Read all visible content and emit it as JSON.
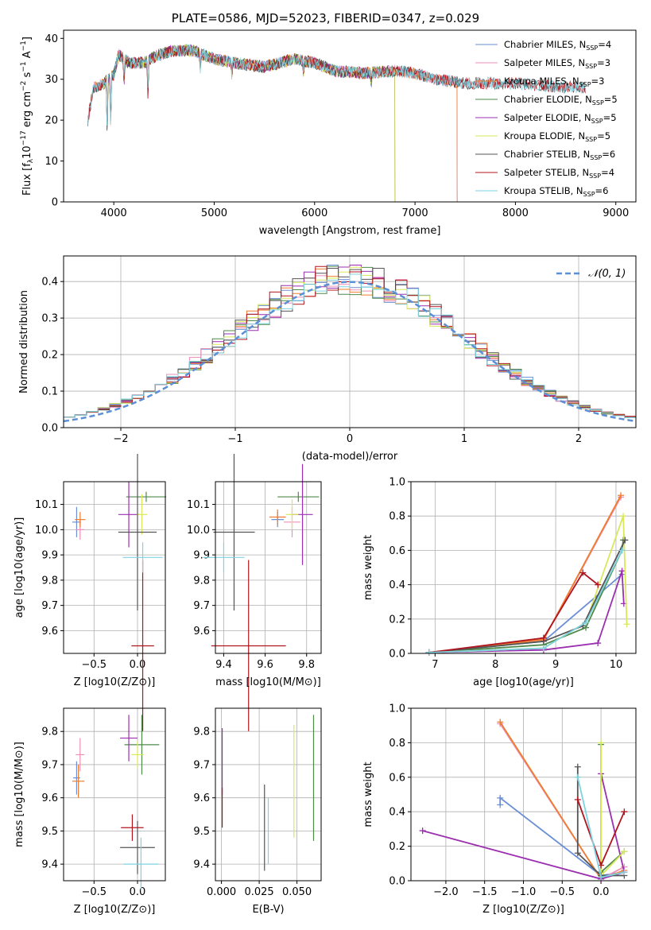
{
  "figure_title": "PLATE=0586, MJD=52023, FIBERID=0347, z=0.029",
  "colors": {
    "Chabrier MILES": "#6a8fd6",
    "Salpeter MILES": "#ee8fb8",
    "Kroupa MILES": "#ef7d2e",
    "Chabrier ELODIE": "#4f8a4a",
    "Salpeter ELODIE": "#9b2fb0",
    "Kroupa ELODIE": "#d8e85a",
    "Chabrier STELIB": "#555555",
    "Salpeter STELIB": "#b0141e",
    "Kroupa STELIB": "#7fd3e0",
    "normal": "#5b8fd6"
  },
  "chart_data": [
    {
      "type": "line",
      "title": "PLATE=0586, MJD=52023, FIBERID=0347, z=0.029",
      "xlabel": "wavelength [Angstrom, rest frame]",
      "ylabel": "Flux [f_λ 10^-17 erg cm^-2 s^-1 A^-1]",
      "xlim": [
        3500,
        9200
      ],
      "ylim": [
        0,
        42
      ],
      "xticks": [
        4000,
        5000,
        6000,
        7000,
        8000,
        9000
      ],
      "yticks": [
        0,
        10,
        20,
        30,
        40
      ],
      "legend_position": "top-right",
      "grid": false,
      "series": [
        {
          "name": "Chabrier MILES, N_SSP=4",
          "range": [
            3740,
            7420
          ]
        },
        {
          "name": "Salpeter MILES, N_SSP=3",
          "range": [
            3740,
            7420
          ]
        },
        {
          "name": "Kroupa MILES, N_SSP=3",
          "range": [
            3740,
            7420
          ]
        },
        {
          "name": "Chabrier ELODIE, N_SSP=5",
          "range": [
            3900,
            6800
          ]
        },
        {
          "name": "Salpeter ELODIE, N_SSP=5",
          "range": [
            3900,
            6800
          ]
        },
        {
          "name": "Kroupa ELODIE, N_SSP=5",
          "range": [
            3900,
            6800
          ]
        },
        {
          "name": "Chabrier STELIB, N_SSP=6",
          "range": [
            3740,
            8700
          ]
        },
        {
          "name": "Salpeter STELIB, N_SSP=4",
          "range": [
            3740,
            8700
          ]
        },
        {
          "name": "Kroupa STELIB, N_SSP=6",
          "range": [
            3740,
            8700
          ]
        }
      ],
      "continuum": {
        "x": [
          3740,
          3800,
          3900,
          4000,
          4050,
          4150,
          4300,
          4450,
          4600,
          4800,
          5000,
          5200,
          5500,
          5800,
          6000,
          6200,
          6500,
          6800,
          7000,
          7200,
          7500,
          8000,
          8500,
          8700
        ],
        "y": [
          20,
          28,
          29,
          31,
          36,
          34,
          34,
          36,
          37,
          37,
          35,
          34,
          33,
          35,
          34,
          32,
          31.5,
          32,
          31.5,
          30,
          29,
          29,
          28,
          28
        ]
      }
    },
    {
      "type": "bar",
      "xlabel": "(data-model)/error",
      "ylabel": "Normed distribution",
      "xlim": [
        -2.5,
        2.5
      ],
      "ylim": [
        0,
        0.47
      ],
      "xticks": [
        -2,
        -1,
        0,
        1,
        2
      ],
      "yticks": [
        0.0,
        0.1,
        0.2,
        0.3,
        0.4
      ],
      "grid": true,
      "legend": "𝒩(0, 1)",
      "legend_position": "top-right",
      "bin_start": -2.5,
      "bin_width": 0.1
    },
    {
      "type": "scatter",
      "xlabel": "Z [log10(Z/Z⊙)]",
      "ylabel": "age  [log10(age/yr)]",
      "xlim": [
        -0.85,
        0.32
      ],
      "ylim": [
        9.51,
        10.19
      ],
      "xticks": [
        "-0.5",
        "0.0"
      ],
      "yticks": [
        "9.6",
        "9.7",
        "9.8",
        "9.9",
        "10.0",
        "10.1"
      ],
      "grid": true,
      "points": [
        {
          "series": "Chabrier MILES",
          "x": -0.7,
          "y": 10.03,
          "xerr": 0.05,
          "yerr": 0.06
        },
        {
          "series": "Salpeter MILES",
          "x": -0.66,
          "y": 10.0,
          "xerr": 0.05,
          "yerr": 0.04
        },
        {
          "series": "Kroupa MILES",
          "x": -0.66,
          "y": 10.04,
          "xerr": 0.06,
          "yerr": 0.03
        },
        {
          "series": "Chabrier ELODIE",
          "x": 0.1,
          "y": 10.13,
          "xerr": 0.23,
          "yerr": 0.02
        },
        {
          "series": "Salpeter ELODIE",
          "x": -0.1,
          "y": 10.06,
          "xerr": 0.12,
          "yerr": 0.13
        },
        {
          "series": "Kroupa ELODIE",
          "x": 0.05,
          "y": 10.06,
          "xerr": 0.06,
          "yerr": 0.08
        },
        {
          "series": "Chabrier STELIB",
          "x": 0.0,
          "y": 9.99,
          "xerr": 0.22,
          "yerr": 0.31
        },
        {
          "series": "Salpeter STELIB",
          "x": 0.06,
          "y": 9.54,
          "xerr": 0.13,
          "yerr": 0.34
        },
        {
          "series": "Kroupa STELIB",
          "x": 0.06,
          "y": 9.89,
          "xerr": 0.23,
          "yerr": 0.06
        }
      ]
    },
    {
      "type": "scatter",
      "xlabel": "mass [log10(M/M⊙)]",
      "ylabel": "",
      "xlim": [
        9.36,
        9.87
      ],
      "ylim": [
        9.51,
        10.19
      ],
      "xticks": [
        "9.4",
        "9.6",
        "9.8"
      ],
      "yticks": [
        "9.6",
        "9.7",
        "9.8",
        "9.9",
        "10.0",
        "10.1"
      ],
      "grid": true,
      "points": [
        {
          "series": "Chabrier MILES",
          "x": 9.66,
          "y": 10.04,
          "xerr": 0.03,
          "yerr": 0.03
        },
        {
          "series": "Salpeter MILES",
          "x": 9.73,
          "y": 10.03,
          "xerr": 0.04,
          "yerr": 0.06
        },
        {
          "series": "Kroupa MILES",
          "x": 9.66,
          "y": 10.05,
          "xerr": 0.04,
          "yerr": 0.03
        },
        {
          "series": "Chabrier ELODIE",
          "x": 9.76,
          "y": 10.13,
          "xerr": 0.1,
          "yerr": 0.02
        },
        {
          "series": "Salpeter ELODIE",
          "x": 9.78,
          "y": 10.06,
          "xerr": 0.05,
          "yerr": 0.2
        },
        {
          "series": "Kroupa ELODIE",
          "x": 9.73,
          "y": 10.06,
          "xerr": 0.03,
          "yerr": 0.06
        },
        {
          "series": "Chabrier STELIB",
          "x": 9.45,
          "y": 9.99,
          "xerr": 0.1,
          "yerr": 0.31
        },
        {
          "series": "Salpeter STELIB",
          "x": 9.52,
          "y": 9.54,
          "xerr": 0.18,
          "yerr": 0.34
        },
        {
          "series": "Kroupa STELIB",
          "x": 9.4,
          "y": 9.89,
          "xerr": 0.1,
          "yerr": 0.06
        }
      ]
    },
    {
      "type": "line",
      "xlabel": "age  [log10(age/yr)]",
      "ylabel": "mass weight",
      "xlim": [
        6.6,
        10.33
      ],
      "ylim": [
        0,
        1
      ],
      "xticks": [
        "7",
        "8",
        "9",
        "10"
      ],
      "yticks": [
        "0.0",
        "0.2",
        "0.4",
        "0.6",
        "0.8",
        "1.0"
      ],
      "grid": true,
      "series": [
        {
          "name": "Chabrier MILES",
          "x": [
            6.9,
            8.8,
            10.1
          ],
          "y": [
            0.005,
            0.07,
            0.46
          ]
        },
        {
          "name": "Salpeter MILES",
          "x": [
            6.9,
            8.8,
            10.08
          ],
          "y": [
            0.005,
            0.08,
            0.91
          ]
        },
        {
          "name": "Kroupa MILES",
          "x": [
            6.9,
            8.8,
            10.08
          ],
          "y": [
            0.005,
            0.08,
            0.92
          ]
        },
        {
          "name": "Chabrier ELODIE",
          "x": [
            6.9,
            8.8,
            9.5,
            10.1,
            10.12
          ],
          "y": [
            0.005,
            0.05,
            0.15,
            0.6,
            0.66
          ]
        },
        {
          "name": "Salpeter ELODIE",
          "x": [
            6.9,
            8.8,
            9.7,
            10.1,
            10.13
          ],
          "y": [
            0.005,
            0.02,
            0.06,
            0.48,
            0.29
          ]
        },
        {
          "name": "Kroupa ELODIE",
          "x": [
            6.9,
            8.8,
            9.5,
            10.12,
            10.18
          ],
          "y": [
            0.005,
            0.03,
            0.18,
            0.8,
            0.17
          ]
        },
        {
          "name": "Chabrier STELIB",
          "x": [
            6.9,
            8.8,
            9.45,
            10.15
          ],
          "y": [
            0.005,
            0.07,
            0.16,
            0.66
          ]
        },
        {
          "name": "Salpeter STELIB",
          "x": [
            6.9,
            8.8,
            9.45,
            9.7
          ],
          "y": [
            0.005,
            0.09,
            0.47,
            0.4
          ]
        },
        {
          "name": "Kroupa STELIB",
          "x": [
            6.9,
            8.8,
            9.5,
            10.1
          ],
          "y": [
            0.005,
            0.03,
            0.18,
            0.6
          ]
        }
      ]
    },
    {
      "type": "scatter",
      "xlabel": "Z [log10(Z/Z⊙)]",
      "ylabel": "mass [log10(M/M⊙)]",
      "xlim": [
        -0.85,
        0.32
      ],
      "ylim": [
        9.35,
        9.87
      ],
      "xticks": [
        "-0.5",
        "0.0"
      ],
      "yticks": [
        "9.4",
        "9.5",
        "9.6",
        "9.7",
        "9.8"
      ],
      "grid": true,
      "points": [
        {
          "series": "Chabrier MILES",
          "x": -0.7,
          "y": 9.66,
          "xerr": 0.04,
          "yerr": 0.05
        },
        {
          "series": "Salpeter MILES",
          "x": -0.66,
          "y": 9.73,
          "xerr": 0.05,
          "yerr": 0.05
        },
        {
          "series": "Kroupa MILES",
          "x": -0.68,
          "y": 9.65,
          "xerr": 0.07,
          "yerr": 0.05
        },
        {
          "series": "Chabrier ELODIE",
          "x": 0.05,
          "y": 9.76,
          "xerr": 0.2,
          "yerr": 0.09
        },
        {
          "series": "Salpeter ELODIE",
          "x": -0.1,
          "y": 9.78,
          "xerr": 0.1,
          "yerr": 0.07
        },
        {
          "series": "Kroupa ELODIE",
          "x": 0.0,
          "y": 9.73,
          "xerr": 0.07,
          "yerr": 0.04
        },
        {
          "series": "Chabrier STELIB",
          "x": 0.0,
          "y": 9.45,
          "xerr": 0.2,
          "yerr": 0.08
        },
        {
          "series": "Salpeter STELIB",
          "x": -0.06,
          "y": 9.51,
          "xerr": 0.13,
          "yerr": 0.04
        },
        {
          "series": "Kroupa STELIB",
          "x": 0.04,
          "y": 9.4,
          "xerr": 0.2,
          "yerr": 0.08
        }
      ]
    },
    {
      "type": "scatter",
      "xlabel": "E(B-V)",
      "ylabel": "",
      "xlim": [
        -0.004,
        0.066
      ],
      "ylim": [
        9.35,
        9.87
      ],
      "xticks": [
        "0.000",
        "0.025",
        "0.050"
      ],
      "yticks": [
        "9.4",
        "9.5",
        "9.6",
        "9.7",
        "9.8"
      ],
      "grid": true,
      "points": [
        {
          "series": "Salpeter ELODIE",
          "x": 0.0005,
          "y": 9.71,
          "xerr": 0.0,
          "yerr": 0.1
        },
        {
          "series": "Salpeter STELIB",
          "x": 0.0005,
          "y": 9.57,
          "xerr": 0.0,
          "yerr": 0.06
        },
        {
          "series": "Chabrier STELIB",
          "x": 0.0285,
          "y": 9.51,
          "xerr": 0.0,
          "yerr": 0.13
        },
        {
          "series": "Kroupa STELIB",
          "x": 0.031,
          "y": 9.5,
          "xerr": 0.0,
          "yerr": 0.1
        },
        {
          "series": "Kroupa ELODIE",
          "x": 0.048,
          "y": 9.65,
          "xerr": 0.0,
          "yerr": 0.17
        },
        {
          "series": "Chabrier ELODIE",
          "x": 0.061,
          "y": 9.66,
          "xerr": 0.0,
          "yerr": 0.19
        }
      ]
    },
    {
      "type": "line",
      "xlabel": "Z [log10(Z/Z⊙)]",
      "ylabel": "mass weight",
      "xlim": [
        -2.45,
        0.45
      ],
      "ylim": [
        0,
        1
      ],
      "xticks": [
        "-2.0",
        "-1.5",
        "-1.0",
        "-0.5",
        "0.0"
      ],
      "yticks": [
        "0.0",
        "0.2",
        "0.4",
        "0.6",
        "0.8",
        "1.0"
      ],
      "grid": true,
      "series": [
        {
          "name": "Chabrier MILES",
          "x": [
            -1.3,
            -1.3,
            0.0,
            0.3
          ],
          "y": [
            0.44,
            0.48,
            0.03,
            0.05
          ]
        },
        {
          "name": "Salpeter MILES",
          "x": [
            -1.3,
            0.0,
            0.3
          ],
          "y": [
            0.91,
            0.01,
            0.08
          ]
        },
        {
          "name": "Kroupa MILES",
          "x": [
            -1.3,
            0.0,
            0.3
          ],
          "y": [
            0.92,
            0.01,
            0.06
          ]
        },
        {
          "name": "Chabrier ELODIE",
          "x": [
            0.0,
            0.0,
            0.3
          ],
          "y": [
            0.79,
            0.05,
            0.17
          ]
        },
        {
          "name": "Salpeter ELODIE",
          "x": [
            -2.3,
            0.0,
            0.3,
            0.0
          ],
          "y": [
            0.29,
            0.01,
            0.05,
            0.62
          ]
        },
        {
          "name": "Kroupa ELODIE",
          "x": [
            0.0,
            0.0,
            0.3
          ],
          "y": [
            0.8,
            0.03,
            0.17
          ]
        },
        {
          "name": "Chabrier STELIB",
          "x": [
            -0.3,
            -0.3,
            0.0,
            0.3
          ],
          "y": [
            0.66,
            0.16,
            0.03,
            0.03
          ]
        },
        {
          "name": "Salpeter STELIB",
          "x": [
            -0.3,
            0.0,
            0.3
          ],
          "y": [
            0.47,
            0.09,
            0.4
          ]
        },
        {
          "name": "Kroupa STELIB",
          "x": [
            -0.3,
            0.0,
            0.3
          ],
          "y": [
            0.6,
            0.02,
            0.05
          ]
        }
      ]
    }
  ]
}
